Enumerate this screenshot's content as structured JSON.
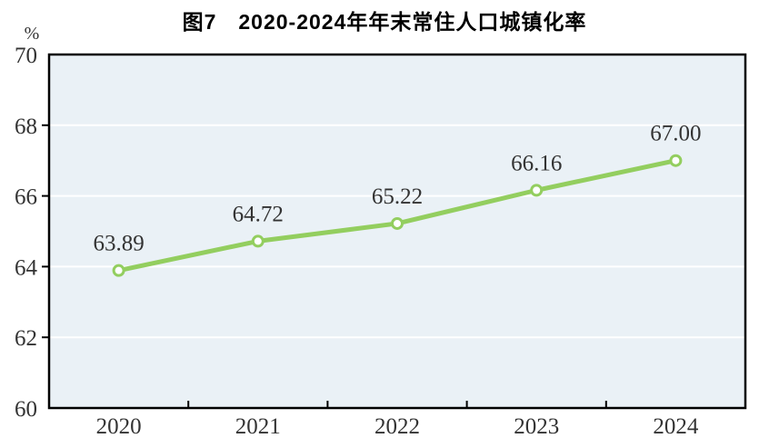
{
  "chart_data": {
    "type": "line",
    "title": "图7　2020-2024年年末常住人口城镇化率",
    "categories": [
      "2020",
      "2021",
      "2022",
      "2023",
      "2024"
    ],
    "values": [
      63.89,
      64.72,
      65.22,
      66.16,
      67.0
    ],
    "labels": [
      "63.89",
      "64.72",
      "65.22",
      "66.16",
      "67.00"
    ],
    "xlabel": "",
    "ylabel": "%",
    "ylim": [
      60,
      70
    ],
    "yticks": [
      60,
      62,
      64,
      66,
      68,
      70
    ],
    "grid": true,
    "legend": "none",
    "colors": {
      "line": "#93ce5f",
      "marker_fill": "#ffffff",
      "plot_bg": "#eaf1f6",
      "gridline": "#ffffff",
      "axis": "#000000",
      "text": "#333333",
      "title": "#000000"
    }
  }
}
